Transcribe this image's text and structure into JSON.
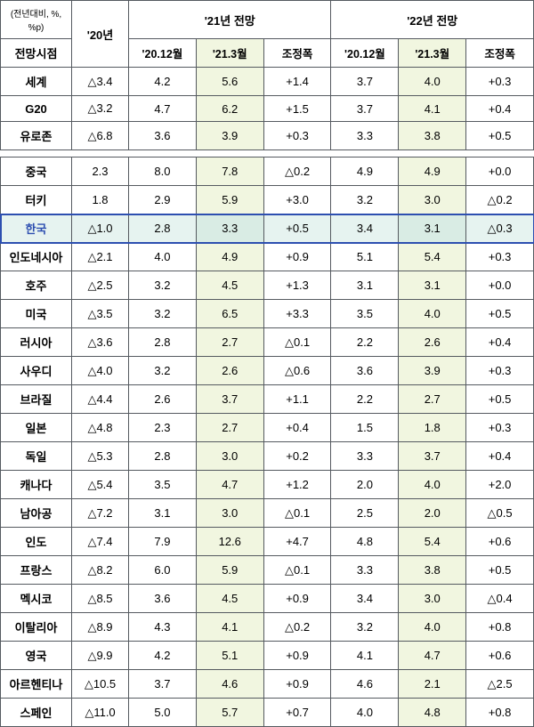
{
  "meta": {
    "unit_label": "(전년대비, %, %p)",
    "forecast_time": "전망시점"
  },
  "headers": {
    "y20": "'20년",
    "y21_group": "'21년 전망",
    "y22_group": "'22년 전망",
    "dec20": "'20.12월",
    "mar21": "'21.3월",
    "adj": "조정폭"
  },
  "rows_top": [
    {
      "label": "세계",
      "y20": "△3.4",
      "f21a": "4.2",
      "f21b": "5.6",
      "adj21": "+1.4",
      "f22a": "3.7",
      "f22b": "4.0",
      "adj22": "+0.3"
    },
    {
      "label": "G20",
      "y20": "△3.2",
      "f21a": "4.7",
      "f21b": "6.2",
      "adj21": "+1.5",
      "f22a": "3.7",
      "f22b": "4.1",
      "adj22": "+0.4"
    },
    {
      "label": "유로존",
      "y20": "△6.8",
      "f21a": "3.6",
      "f21b": "3.9",
      "adj21": "+0.3",
      "f22a": "3.3",
      "f22b": "3.8",
      "adj22": "+0.5"
    }
  ],
  "rows_main": [
    {
      "label": "중국",
      "y20": "2.3",
      "f21a": "8.0",
      "f21b": "7.8",
      "adj21": "△0.2",
      "f22a": "4.9",
      "f22b": "4.9",
      "adj22": "+0.0"
    },
    {
      "label": "터키",
      "y20": "1.8",
      "f21a": "2.9",
      "f21b": "5.9",
      "adj21": "+3.0",
      "f22a": "3.2",
      "f22b": "3.0",
      "adj22": "△0.2"
    },
    {
      "label": "한국",
      "y20": "△1.0",
      "f21a": "2.8",
      "f21b": "3.3",
      "adj21": "+0.5",
      "f22a": "3.4",
      "f22b": "3.1",
      "adj22": "△0.3",
      "highlight": true
    },
    {
      "label": "인도네시아",
      "y20": "△2.1",
      "f21a": "4.0",
      "f21b": "4.9",
      "adj21": "+0.9",
      "f22a": "5.1",
      "f22b": "5.4",
      "adj22": "+0.3"
    },
    {
      "label": "호주",
      "y20": "△2.5",
      "f21a": "3.2",
      "f21b": "4.5",
      "adj21": "+1.3",
      "f22a": "3.1",
      "f22b": "3.1",
      "adj22": "+0.0"
    },
    {
      "label": "미국",
      "y20": "△3.5",
      "f21a": "3.2",
      "f21b": "6.5",
      "adj21": "+3.3",
      "f22a": "3.5",
      "f22b": "4.0",
      "adj22": "+0.5"
    },
    {
      "label": "러시아",
      "y20": "△3.6",
      "f21a": "2.8",
      "f21b": "2.7",
      "adj21": "△0.1",
      "f22a": "2.2",
      "f22b": "2.6",
      "adj22": "+0.4"
    },
    {
      "label": "사우디",
      "y20": "△4.0",
      "f21a": "3.2",
      "f21b": "2.6",
      "adj21": "△0.6",
      "f22a": "3.6",
      "f22b": "3.9",
      "adj22": "+0.3"
    },
    {
      "label": "브라질",
      "y20": "△4.4",
      "f21a": "2.6",
      "f21b": "3.7",
      "adj21": "+1.1",
      "f22a": "2.2",
      "f22b": "2.7",
      "adj22": "+0.5"
    },
    {
      "label": "일본",
      "y20": "△4.8",
      "f21a": "2.3",
      "f21b": "2.7",
      "adj21": "+0.4",
      "f22a": "1.5",
      "f22b": "1.8",
      "adj22": "+0.3"
    },
    {
      "label": "독일",
      "y20": "△5.3",
      "f21a": "2.8",
      "f21b": "3.0",
      "adj21": "+0.2",
      "f22a": "3.3",
      "f22b": "3.7",
      "adj22": "+0.4"
    },
    {
      "label": "캐나다",
      "y20": "△5.4",
      "f21a": "3.5",
      "f21b": "4.7",
      "adj21": "+1.2",
      "f22a": "2.0",
      "f22b": "4.0",
      "adj22": "+2.0"
    },
    {
      "label": "남아공",
      "y20": "△7.2",
      "f21a": "3.1",
      "f21b": "3.0",
      "adj21": "△0.1",
      "f22a": "2.5",
      "f22b": "2.0",
      "adj22": "△0.5"
    },
    {
      "label": "인도",
      "y20": "△7.4",
      "f21a": "7.9",
      "f21b": "12.6",
      "adj21": "+4.7",
      "f22a": "4.8",
      "f22b": "5.4",
      "adj22": "+0.6"
    },
    {
      "label": "프랑스",
      "y20": "△8.2",
      "f21a": "6.0",
      "f21b": "5.9",
      "adj21": "△0.1",
      "f22a": "3.3",
      "f22b": "3.8",
      "adj22": "+0.5"
    },
    {
      "label": "멕시코",
      "y20": "△8.5",
      "f21a": "3.6",
      "f21b": "4.5",
      "adj21": "+0.9",
      "f22a": "3.4",
      "f22b": "3.0",
      "adj22": "△0.4"
    },
    {
      "label": "이탈리아",
      "y20": "△8.9",
      "f21a": "4.3",
      "f21b": "4.1",
      "adj21": "△0.2",
      "f22a": "3.2",
      "f22b": "4.0",
      "adj22": "+0.8"
    },
    {
      "label": "영국",
      "y20": "△9.9",
      "f21a": "4.2",
      "f21b": "5.1",
      "adj21": "+0.9",
      "f22a": "4.1",
      "f22b": "4.7",
      "adj22": "+0.6"
    },
    {
      "label": "아르헨티나",
      "y20": "△10.5",
      "f21a": "3.7",
      "f21b": "4.6",
      "adj21": "+0.9",
      "f22a": "4.6",
      "f22b": "2.1",
      "adj22": "△2.5"
    },
    {
      "label": "스페인",
      "y20": "△11.0",
      "f21a": "5.0",
      "f21b": "5.7",
      "adj21": "+0.7",
      "f22a": "4.0",
      "f22b": "4.8",
      "adj22": "+0.8"
    }
  ],
  "style": {
    "highlight_col_bg": "#f1f6e0",
    "highlight_row_bg": "#e6f3f0",
    "highlight_row_border": "#2d4fb0",
    "border_color": "#555a60",
    "font_size": 13
  }
}
